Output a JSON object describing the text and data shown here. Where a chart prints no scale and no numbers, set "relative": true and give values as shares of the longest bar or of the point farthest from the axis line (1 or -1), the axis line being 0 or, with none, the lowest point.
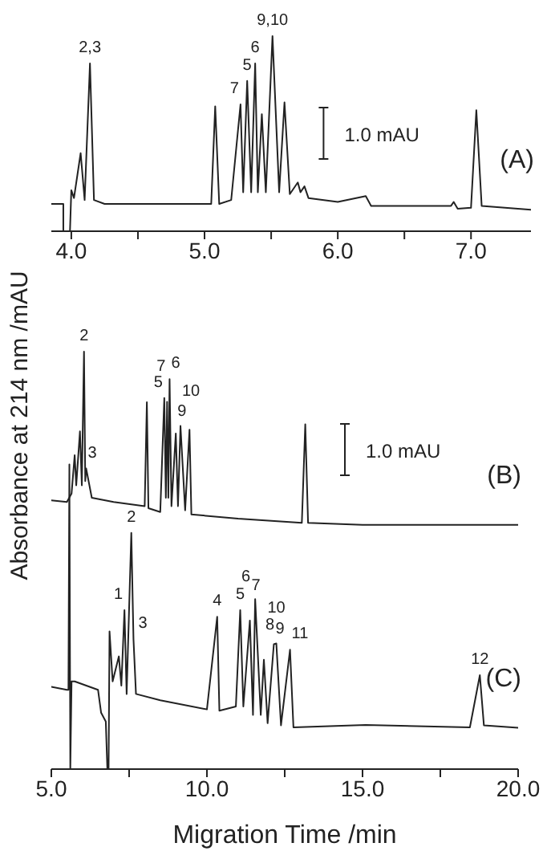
{
  "chart_data": [
    {
      "type": "line",
      "relative": true,
      "xlim": [
        3.85,
        7.45
      ],
      "xticks": [
        {
          "value": 4,
          "label": "4.0"
        },
        {
          "value": 4.5,
          "label": null
        },
        {
          "value": 5,
          "label": "5.0"
        },
        {
          "value": 5.5,
          "label": null
        },
        {
          "value": 6,
          "label": "6.0"
        },
        {
          "value": 6.5,
          "label": null
        },
        {
          "value": 7,
          "label": "7.0"
        }
      ],
      "series": [
        {
          "name": "(A)",
          "color": "#222222",
          "x": [
            3.85,
            3.94,
            3.94,
            3.99,
            4.0,
            4.02,
            4.07,
            4.1,
            4.14,
            4.17,
            4.25,
            5.0,
            5.05,
            5.08,
            5.11,
            5.2,
            5.27,
            5.29,
            5.32,
            5.35,
            5.38,
            5.4,
            5.43,
            5.46,
            5.51,
            5.56,
            5.6,
            5.64,
            5.7,
            5.72,
            5.75,
            5.78,
            6.0,
            6.21,
            6.25,
            6.85,
            6.87,
            6.9,
            7.0,
            7.04,
            7.08,
            7.45
          ],
          "values": [
            0.14,
            0.14,
            0,
            0,
            0.21,
            0.17,
            0.4,
            0.16,
            0.86,
            0.16,
            0.14,
            0.14,
            0.14,
            0.64,
            0.14,
            0.16,
            0.65,
            0.2,
            0.77,
            0.2,
            0.86,
            0.2,
            0.6,
            0.2,
            1.0,
            0.2,
            0.66,
            0.19,
            0.25,
            0.2,
            0.23,
            0.17,
            0.15,
            0.18,
            0.13,
            0.13,
            0.15,
            0.115,
            0.12,
            0.62,
            0.13,
            0.11
          ]
        }
      ],
      "annotations": [
        {
          "text": "2,3",
          "x": 4.14,
          "y": 0.86
        },
        {
          "text": "7",
          "x": 5.27,
          "y": 0.65
        },
        {
          "text": "5",
          "x": 5.32,
          "y": 0.77
        },
        {
          "text": "6",
          "x": 5.38,
          "y": 0.86
        },
        {
          "text": "9,10",
          "x": 5.51,
          "y": 1.0
        },
        "1.0 mAU"
      ]
    },
    {
      "type": "line",
      "relative": true,
      "xlim": [
        5,
        20
      ],
      "xticks": [
        {
          "value": 5,
          "label": "5.0"
        },
        {
          "value": 7.5,
          "label": null
        },
        {
          "value": 10,
          "label": "10.0"
        },
        {
          "value": 12.5,
          "label": null
        },
        {
          "value": 15,
          "label": "15.0"
        },
        {
          "value": 17.5,
          "label": null
        },
        {
          "value": 20,
          "label": "20.0"
        }
      ],
      "xlabel": "Migration Time /min",
      "ylabel": "Absorbance at 214 nm /mAU",
      "series": [
        {
          "name": "(B)",
          "color": "#222222",
          "x": [
            5,
            5.5,
            5.65,
            5.75,
            5.8,
            5.92,
            5.98,
            6.05,
            6.09,
            6.12,
            6.3,
            7,
            8.0,
            8.07,
            8.12,
            8.5,
            8.63,
            8.68,
            8.72,
            8.76,
            8.8,
            8.86,
            9.0,
            9.07,
            9.15,
            9.3,
            9.44,
            9.5,
            11,
            13.05,
            13.16,
            13.25,
            15,
            20
          ],
          "values": [
            0.644,
            0.64,
            0.66,
            0.752,
            0.68,
            0.809,
            0.68,
            1.0,
            0.69,
            0.72,
            0.65,
            0.64,
            0.63,
            0.879,
            0.625,
            0.616,
            0.889,
            0.65,
            0.88,
            0.65,
            0.934,
            0.63,
            0.804,
            0.63,
            0.822,
            0.62,
            0.813,
            0.61,
            0.6,
            0.59,
            0.826,
            0.59,
            0.585,
            0.585
          ]
        },
        {
          "name": "(C)",
          "color": "#222222",
          "x": [
            5,
            5.5,
            5.55,
            5.58,
            5.61,
            5.65,
            5.75,
            6.5,
            6.6,
            6.75,
            6.8,
            6.84,
            6.87,
            6.97,
            7.17,
            7.25,
            7.35,
            7.42,
            7.57,
            7.64,
            7.72,
            8.5,
            10,
            10.33,
            10.4,
            10.93,
            11.07,
            11.17,
            11.38,
            11.48,
            11.55,
            11.73,
            11.83,
            11.95,
            12.15,
            12.23,
            12.38,
            12.67,
            12.78,
            15.1,
            18.45,
            18.77,
            18.9,
            20
          ],
          "values": [
            0.197,
            0.19,
            0.19,
            0.73,
            0,
            0.21,
            0.21,
            0.19,
            0.135,
            0.114,
            0,
            0,
            0.33,
            0.21,
            0.27,
            0.2,
            0.381,
            0.18,
            0.566,
            0.311,
            0.18,
            0.165,
            0.143,
            0.365,
            0.14,
            0.15,
            0.381,
            0.15,
            0.356,
            0.13,
            0.407,
            0.13,
            0.262,
            0.11,
            0.299,
            0.301,
            0.105,
            0.286,
            0.1,
            0.106,
            0.1,
            0.225,
            0.105,
            0.099
          ]
        }
      ],
      "annotations": [
        {
          "text": "2",
          "x": 6.05,
          "y": 1.0
        },
        {
          "text": "3",
          "x": 6.12,
          "y": 0.72
        },
        {
          "text": "5",
          "x": 8.63,
          "y": 0.889
        },
        {
          "text": "7",
          "x": 8.72,
          "y": 0.88
        },
        {
          "text": "6",
          "x": 8.8,
          "y": 0.934
        },
        {
          "text": "9",
          "x": 9.0,
          "y": 0.804
        },
        {
          "text": "10",
          "x": 9.15,
          "y": 0.822
        },
        {
          "text": "1",
          "x": 7.35,
          "y": 0.381
        },
        {
          "text": "2",
          "x": 7.57,
          "y": 0.566
        },
        {
          "text": "3",
          "x": 7.64,
          "y": 0.311
        },
        {
          "text": "4",
          "x": 10.33,
          "y": 0.365
        },
        {
          "text": "5",
          "x": 11.07,
          "y": 0.381
        },
        {
          "text": "7",
          "x": 11.38,
          "y": 0.356
        },
        {
          "text": "6",
          "x": 11.55,
          "y": 0.407
        },
        {
          "text": "8",
          "x": 11.83,
          "y": 0.262
        },
        {
          "text": "9",
          "x": 12.15,
          "y": 0.299
        },
        {
          "text": "10",
          "x": 12.23,
          "y": 0.301
        },
        {
          "text": "11",
          "x": 12.67,
          "y": 0.286
        },
        {
          "text": "12",
          "x": 18.77,
          "y": 0.225
        },
        "1.0 mAU"
      ]
    }
  ]
}
